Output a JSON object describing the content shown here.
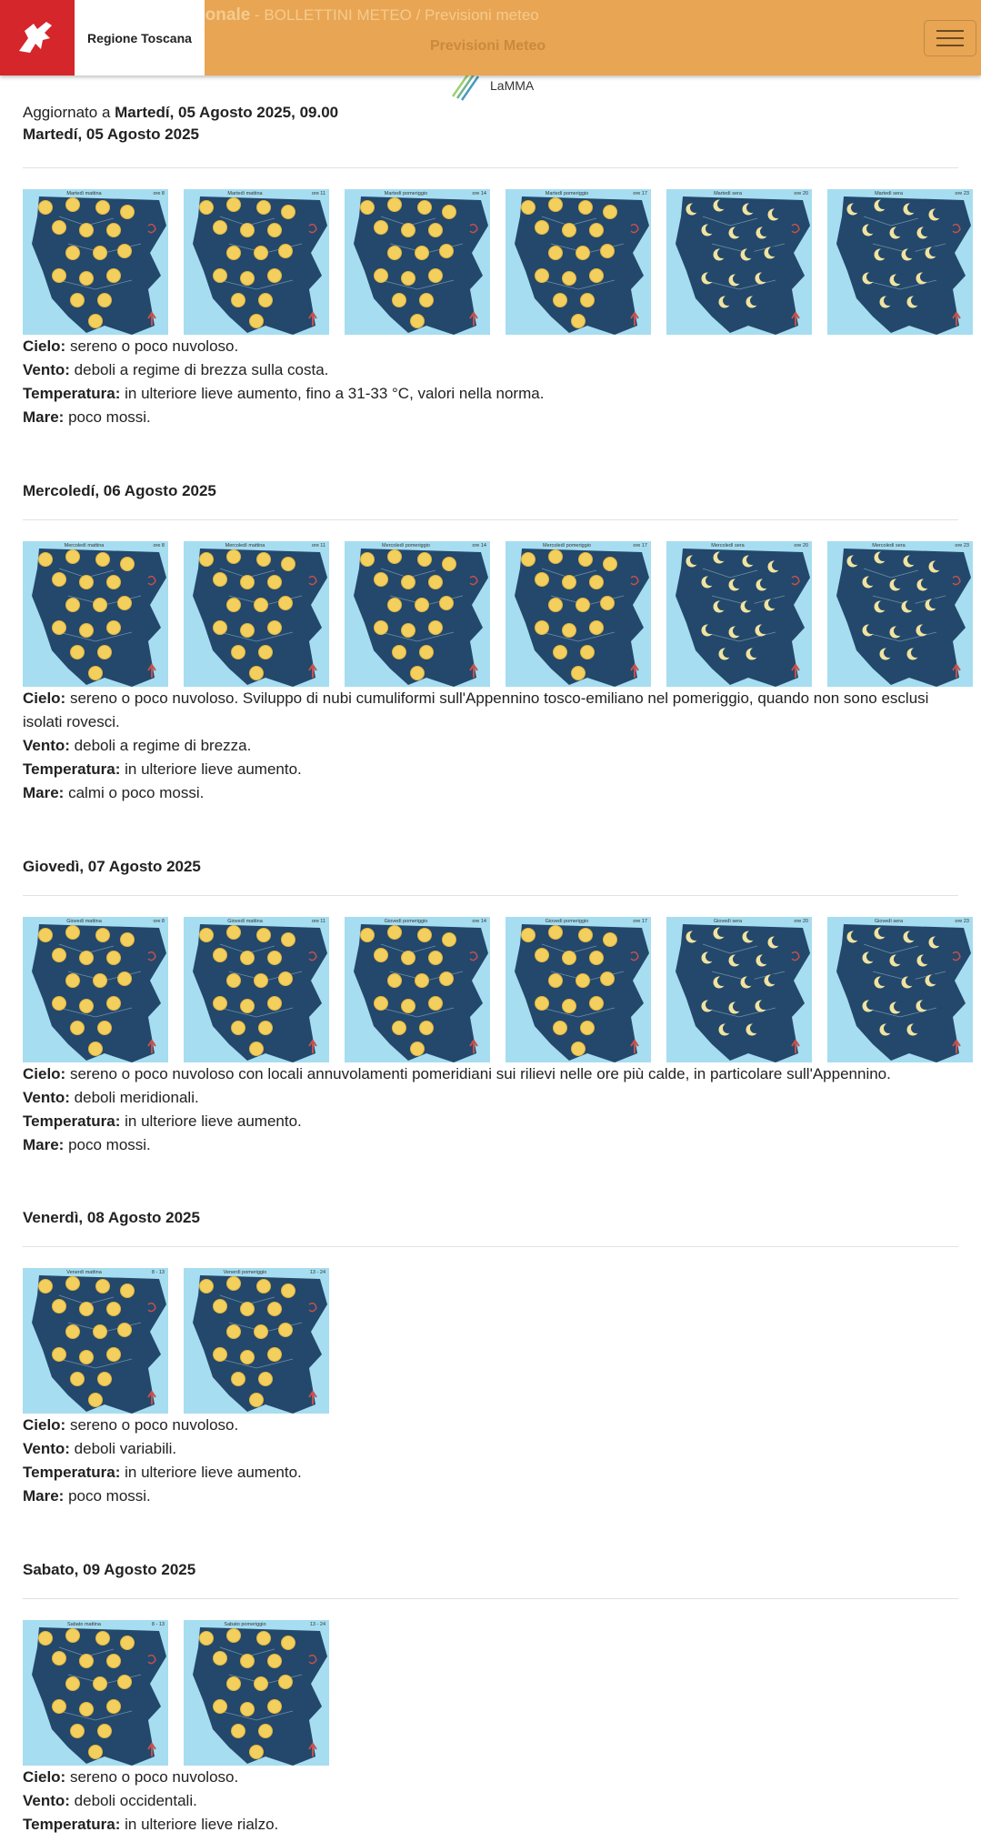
{
  "header": {
    "brand": "Regione Toscana",
    "crumb_main": "Funzionale Regionale",
    "crumb_path": " - BOLLETTINI METEO / Previsioni meteo",
    "subtitle": "Previsioni Meteo",
    "lamma_logo": "LaMMA",
    "colors": {
      "header_bg": "#e8a553",
      "brand_red": "#d5262b"
    }
  },
  "updated": {
    "prefix": "Aggiornato a ",
    "value": "Martedí, 05 Agosto 2025, 09.00"
  },
  "labels": {
    "cielo": "Cielo:",
    "vento": "Vento:",
    "temperatura": "Temperatura:",
    "mare": "Mare:"
  },
  "days": [
    {
      "title": "Martedí, 05 Agosto 2025",
      "maps": [
        {
          "label": "Martedì mattina",
          "hour": "ore 8",
          "icon": "sun"
        },
        {
          "label": "Martedì mattina",
          "hour": "ore 11",
          "icon": "sun"
        },
        {
          "label": "Martedì pomeriggio",
          "hour": "ore 14",
          "icon": "sun"
        },
        {
          "label": "Martedì pomeriggio",
          "hour": "ore 17",
          "icon": "sun"
        },
        {
          "label": "Martedì sera",
          "hour": "ore 20",
          "icon": "moon"
        },
        {
          "label": "Martedì sera",
          "hour": "ore 23",
          "icon": "moon"
        }
      ],
      "cielo": " sereno o poco nuvoloso.",
      "vento": " deboli a regime di brezza sulla costa.",
      "temperatura": " in ulteriore lieve aumento, fino a 31-33 °C, valori nella norma.",
      "mare": " poco mossi."
    },
    {
      "title": "Mercoledí, 06 Agosto 2025",
      "maps": [
        {
          "label": "Mercoledì mattina",
          "hour": "ore 8",
          "icon": "sun"
        },
        {
          "label": "Mercoledì mattina",
          "hour": "ore 11",
          "icon": "sun"
        },
        {
          "label": "Mercoledì pomeriggio",
          "hour": "ore 14",
          "icon": "sun"
        },
        {
          "label": "Mercoledì pomeriggio",
          "hour": "ore 17",
          "icon": "sun"
        },
        {
          "label": "Mercoledì sera",
          "hour": "ore 20",
          "icon": "moon"
        },
        {
          "label": "Mercoledì sera",
          "hour": "ore 23",
          "icon": "moon"
        }
      ],
      "cielo": " sereno o poco nuvoloso. Sviluppo di nubi cumuliformi sull'Appennino tosco-emiliano nel pomeriggio, quando non sono esclusi isolati rovesci.",
      "vento": " deboli a regime di brezza.",
      "temperatura": " in ulteriore lieve aumento.",
      "mare": " calmi o poco mossi."
    },
    {
      "title": "Giovedì, 07 Agosto 2025",
      "maps": [
        {
          "label": "Giovedì mattina",
          "hour": "ore 8",
          "icon": "sun"
        },
        {
          "label": "Giovedì mattina",
          "hour": "ore 11",
          "icon": "sun"
        },
        {
          "label": "Giovedì pomeriggio",
          "hour": "ore 14",
          "icon": "sun"
        },
        {
          "label": "Giovedì pomeriggio",
          "hour": "ore 17",
          "icon": "sun"
        },
        {
          "label": "Giovedì sera",
          "hour": "ore 20",
          "icon": "moon"
        },
        {
          "label": "Giovedì sera",
          "hour": "ore 23",
          "icon": "moon"
        }
      ],
      "cielo": " sereno o poco nuvoloso con locali annuvolamenti pomeridiani sui rilievi nelle ore più calde, in particolare sull'Appennino.",
      "vento": " deboli meridionali.",
      "temperatura": " in ulteriore lieve aumento.",
      "mare": " poco mossi."
    },
    {
      "title": "Venerdì, 08 Agosto 2025",
      "maps": [
        {
          "label": "Venerdì mattina",
          "hour": "8 - 13",
          "icon": "sun"
        },
        {
          "label": "Venerdì pomeriggio",
          "hour": "13 - 24",
          "icon": "sun"
        }
      ],
      "cielo": " sereno o poco nuvoloso.",
      "vento": " deboli variabili.",
      "temperatura": " in ulteriore lieve aumento.",
      "mare": " poco mossi."
    },
    {
      "title": "Sabato, 09 Agosto 2025",
      "maps": [
        {
          "label": "Sabato mattina",
          "hour": "8 - 13",
          "icon": "sun"
        },
        {
          "label": "Sabato pomeriggio",
          "hour": "13 - 24",
          "icon": "sun"
        }
      ],
      "cielo": " sereno o poco nuvoloso.",
      "vento": " deboli occidentali.",
      "temperatura": " in ulteriore lieve rialzo."
    }
  ]
}
